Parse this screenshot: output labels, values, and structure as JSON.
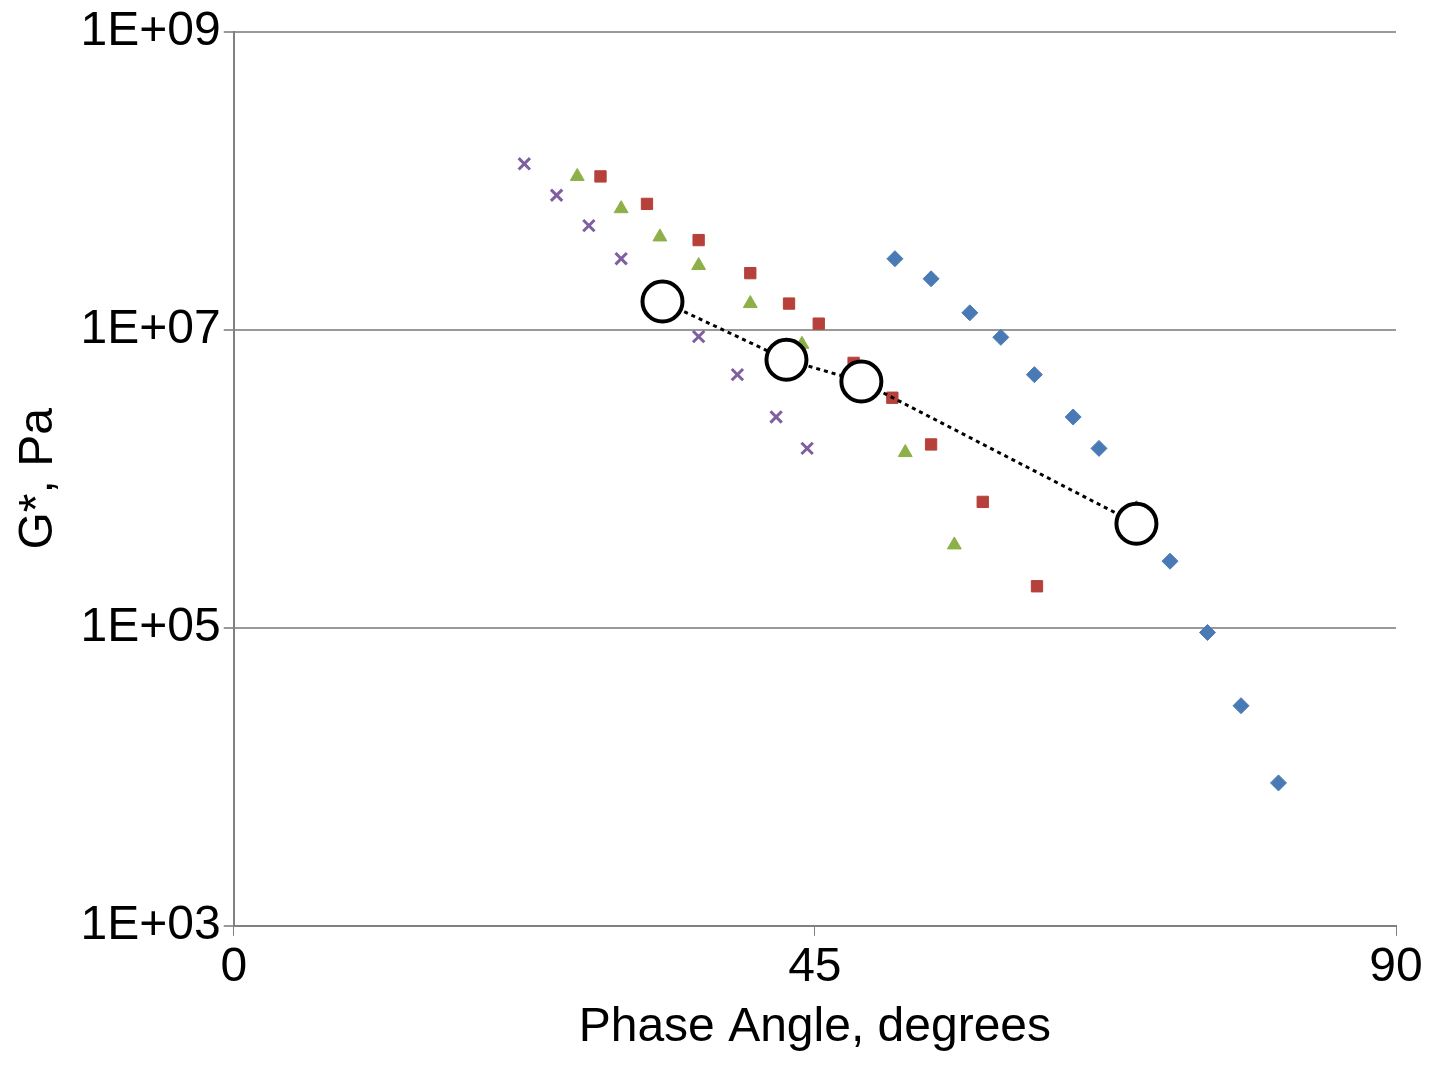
{
  "chart_data": {
    "type": "scatter",
    "x_label": "Phase Angle, degrees",
    "y_label": "G*, Pa",
    "xlim": [
      0,
      90
    ],
    "xticks": [
      0,
      45,
      90
    ],
    "ylim": [
      1000,
      1000000000
    ],
    "yticks": [
      {
        "value": 1000,
        "label": "1E+03"
      },
      {
        "value": 100000,
        "label": "1E+05"
      },
      {
        "value": 10000000,
        "label": "1E+07"
      },
      {
        "value": 1000000000,
        "label": "1E+09"
      }
    ],
    "log": "y",
    "grid": true,
    "series": [
      {
        "color": "#7e5fa0",
        "marker": "x",
        "type": "scatter",
        "x": [
          22.5,
          25,
          27.5,
          30,
          33,
          36,
          39,
          42,
          44.4
        ],
        "values": [
          130000000,
          80000000,
          50000000,
          30000000,
          17000000,
          9000000,
          5000000,
          2600000,
          1600000
        ]
      },
      {
        "color": "#8db048",
        "marker": "triangle",
        "type": "scatter",
        "x": [
          26.6,
          30,
          33,
          36,
          40,
          44,
          48,
          52,
          55.8
        ],
        "values": [
          107000000,
          65000000,
          42000000,
          27000000,
          15000000,
          8000000,
          4000000,
          1500000,
          360000
        ]
      },
      {
        "color": "#b6403a",
        "marker": "square",
        "type": "scatter",
        "x": [
          28.4,
          32,
          36,
          40,
          43,
          45.3,
          48,
          51,
          54,
          58,
          62.2
        ],
        "values": [
          107000000,
          70000000,
          40000000,
          24000000,
          15000000,
          11000000,
          6000000,
          3500000,
          1700000,
          700000,
          190000
        ]
      },
      {
        "color": "#4a7ab5",
        "marker": "diamond",
        "type": "scatter",
        "x": [
          51.2,
          54,
          57,
          59.4,
          62,
          65,
          67,
          69.9,
          72.5,
          75.4,
          78,
          80.9
        ],
        "values": [
          30000000,
          22000000,
          13000000,
          8900000,
          5000000,
          2600000,
          1600000,
          630000,
          280000,
          93000,
          30000,
          9100
        ]
      },
      {
        "color": "#ffffff",
        "marker": "circle",
        "type": "line",
        "line_style": "dotted",
        "x": [
          33.2,
          42.8,
          48.6,
          69.9
        ],
        "values": [
          15500000,
          6300000,
          4500000,
          500000
        ]
      }
    ]
  }
}
